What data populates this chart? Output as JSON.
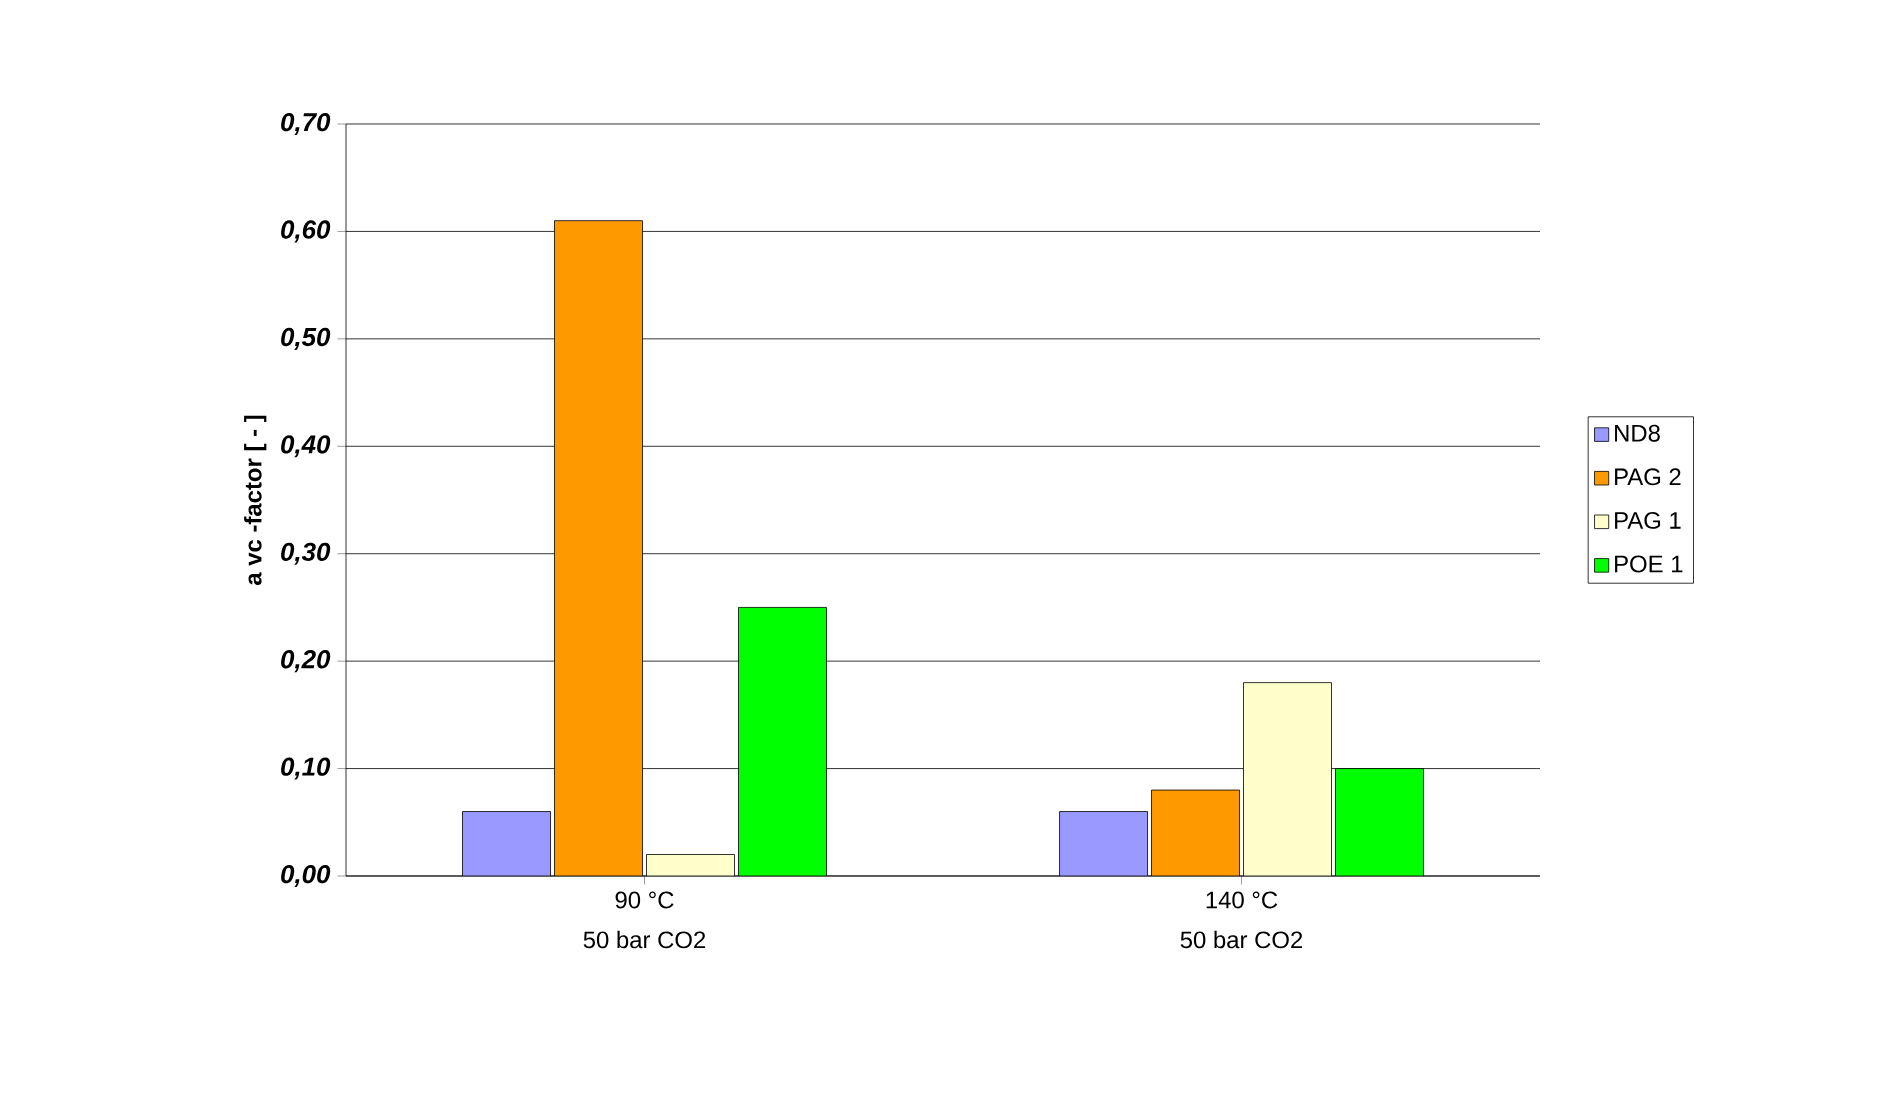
{
  "chart_data": {
    "type": "bar",
    "ylabel": "a vc -factor [ - ]",
    "categories": [
      "90 °C\n50 bar CO2",
      "140 °C\n50 bar CO2"
    ],
    "series": [
      {
        "name": "ND8",
        "color": "#9999ff",
        "values": [
          0.06,
          0.06
        ]
      },
      {
        "name": "PAG 2",
        "color": "#ff9900",
        "values": [
          0.61,
          0.08
        ]
      },
      {
        "name": "PAG 1",
        "color": "#ffffcc",
        "values": [
          0.02,
          0.18
        ]
      },
      {
        "name": "POE 1",
        "color": "#00ff00",
        "values": [
          0.25,
          0.1
        ]
      }
    ],
    "ylim": [
      0,
      0.7
    ],
    "yticks": [
      {
        "value": 0,
        "label": "0,00"
      },
      {
        "value": 0.1,
        "label": "0,10"
      },
      {
        "value": 0.2,
        "label": "0,20"
      },
      {
        "value": 0.3,
        "label": "0,30"
      },
      {
        "value": 0.4,
        "label": "0,40"
      },
      {
        "value": 0.5,
        "label": "0,50"
      },
      {
        "value": 0.6,
        "label": "0,60"
      },
      {
        "value": 0.7,
        "label": "0,70"
      }
    ],
    "grid": "y",
    "legend": "right"
  }
}
